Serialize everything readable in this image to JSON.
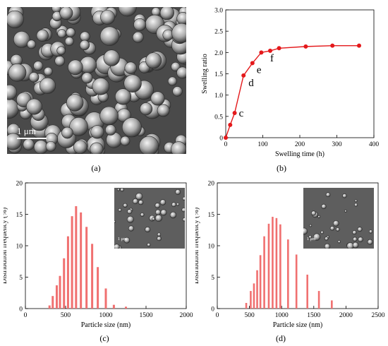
{
  "captions": {
    "a": "(a)",
    "b": "(b)",
    "c": "(c)",
    "d": "(d)"
  },
  "images": {
    "sem_a": {
      "scale_label": "1 μm"
    },
    "inset_c": {
      "scale_label": "1 μm"
    },
    "inset_d": {
      "scale_label": "1 μm"
    }
  },
  "colors": {
    "series": "#e4191b",
    "bar": "#f07070",
    "sem_bg": "#6d6d6d"
  },
  "chart_data": [
    {
      "id": "b",
      "type": "line",
      "xlabel": "Swelling time  (h)",
      "ylabel": "Swelling ratio",
      "xlim": [
        0,
        400
      ],
      "ylim": [
        0,
        3.0
      ],
      "xticks": [
        0,
        100,
        200,
        300,
        400
      ],
      "yticks": [
        0,
        0.5,
        1.0,
        1.5,
        2.0,
        2.5,
        3.0
      ],
      "ytick_labels": [
        "0",
        "0.5",
        "1.0",
        "1.5",
        "2.0",
        "2.5",
        "3.0"
      ],
      "series": [
        {
          "x": [
            0,
            12,
            24,
            48,
            72,
            96,
            120,
            144,
            216,
            288,
            360
          ],
          "y": [
            0.0,
            0.3,
            0.58,
            1.46,
            1.75,
            2.0,
            2.04,
            2.1,
            2.14,
            2.16,
            2.16
          ]
        }
      ],
      "annotations": [
        {
          "text": "c",
          "x": 24,
          "y": 0.58
        },
        {
          "text": "d",
          "x": 48,
          "y": 1.46
        },
        {
          "text": "e",
          "x": 72,
          "y": 1.75
        },
        {
          "text": "f",
          "x": 120,
          "y": 2.04
        }
      ]
    },
    {
      "id": "c",
      "type": "bar",
      "xlabel": "Particle size  (nm)",
      "ylabel": "Distribution frequency  (%)",
      "xlim": [
        0,
        2000
      ],
      "ylim": [
        0,
        20
      ],
      "xticks": [
        0,
        500,
        1000,
        1500,
        2000
      ],
      "yticks": [
        0,
        5,
        10,
        15,
        20
      ],
      "x": [
        300,
        340,
        390,
        430,
        480,
        530,
        580,
        630,
        690,
        760,
        830,
        900,
        1000,
        1100,
        1250
      ],
      "values": [
        0.5,
        2.0,
        3.7,
        5.2,
        8.0,
        11.5,
        14.7,
        16.3,
        15.3,
        13.0,
        10.3,
        6.6,
        3.2,
        0.6,
        0.3
      ]
    },
    {
      "id": "d",
      "type": "bar",
      "xlabel": "Particle size  (nm)",
      "ylabel": "Distribution frequency  (%)",
      "xlim": [
        0,
        2500
      ],
      "ylim": [
        0,
        20
      ],
      "xticks": [
        0,
        500,
        1000,
        1500,
        2000,
        2500
      ],
      "yticks": [
        0,
        5,
        10,
        15,
        20
      ],
      "x": [
        450,
        520,
        570,
        620,
        670,
        730,
        800,
        860,
        920,
        980,
        1100,
        1230,
        1400,
        1580,
        1780
      ],
      "values": [
        0.9,
        2.8,
        4.0,
        6.1,
        8.5,
        11.5,
        13.5,
        14.6,
        14.4,
        13.4,
        11.0,
        8.6,
        5.4,
        2.8,
        1.3
      ]
    }
  ]
}
